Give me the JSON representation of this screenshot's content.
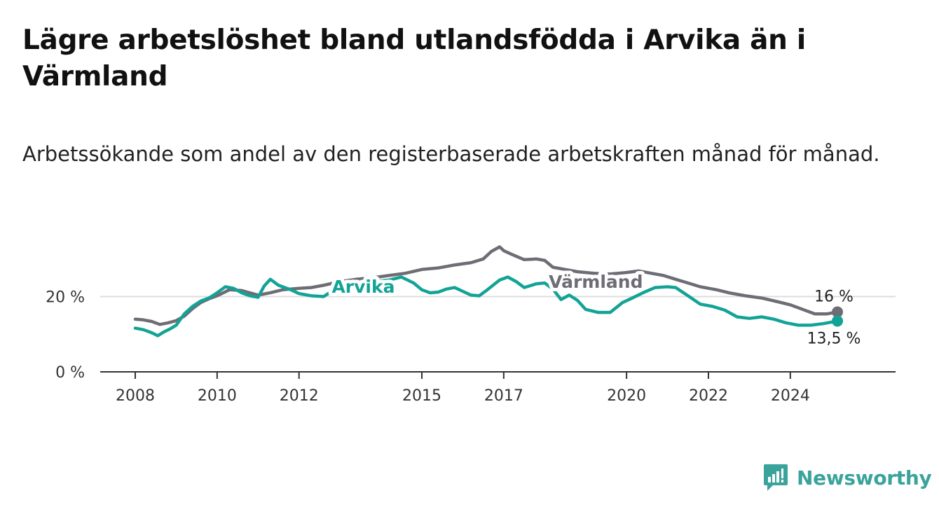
{
  "title": "Lägre arbetslöshet bland utlandsfödda i Arvika än i Värmland",
  "subtitle": "Arbetssökande som andel av den registerbaserade arbetskraften månad för månad.",
  "brand": {
    "name": "Newsworthy",
    "icon": "newsworthy-logo-icon"
  },
  "colors": {
    "arvika": "#13a396",
    "varmland": "#6e6c75",
    "grid": "#dddddd",
    "brand": "#3aa39b"
  },
  "chart_data": {
    "type": "line",
    "title": "Lägre arbetslöshet bland utlandsfödda i Arvika än i Värmland",
    "subtitle": "Arbetssökande som andel av den registerbaserade arbetskraften månad för månad.",
    "xlabel": "",
    "ylabel": "",
    "xlim": [
      2008,
      2025.8
    ],
    "ylim": [
      0,
      40
    ],
    "x_ticks": [
      {
        "value": 2008,
        "label": "2008"
      },
      {
        "value": 2010,
        "label": "2010"
      },
      {
        "value": 2012,
        "label": "2012"
      },
      {
        "value": 2015,
        "label": "2015"
      },
      {
        "value": 2017,
        "label": "2017"
      },
      {
        "value": 2020,
        "label": "2020"
      },
      {
        "value": 2022,
        "label": "2022"
      },
      {
        "value": 2024,
        "label": "2024"
      }
    ],
    "y_ticks": [
      {
        "value": 0,
        "label": "0 %"
      },
      {
        "value": 20,
        "label": "20 %"
      }
    ],
    "grid": true,
    "legend": "inline labels",
    "series": [
      {
        "name": "Värmland",
        "color": "#6e6c75",
        "label_at": [
          2013.8,
          23.8
        ],
        "end_label": "16 %",
        "points": [
          [
            2008.0,
            14.0
          ],
          [
            2008.2,
            13.8
          ],
          [
            2008.4,
            13.4
          ],
          [
            2008.6,
            12.6
          ],
          [
            2008.8,
            13.0
          ],
          [
            2009.0,
            13.6
          ],
          [
            2009.2,
            14.8
          ],
          [
            2009.4,
            16.8
          ],
          [
            2009.6,
            18.4
          ],
          [
            2009.8,
            19.4
          ],
          [
            2010.0,
            20.2
          ],
          [
            2010.3,
            21.8
          ],
          [
            2010.6,
            21.6
          ],
          [
            2011.0,
            20.4
          ],
          [
            2011.3,
            21.0
          ],
          [
            2011.6,
            21.8
          ],
          [
            2012.0,
            22.2
          ],
          [
            2012.3,
            22.4
          ],
          [
            2012.6,
            23.0
          ],
          [
            2013.0,
            24.0
          ],
          [
            2013.4,
            24.6
          ],
          [
            2013.8,
            25.0
          ],
          [
            2014.2,
            25.6
          ],
          [
            2014.6,
            26.2
          ],
          [
            2015.0,
            27.2
          ],
          [
            2015.4,
            27.6
          ],
          [
            2015.8,
            28.4
          ],
          [
            2016.2,
            29.0
          ],
          [
            2016.5,
            30.0
          ],
          [
            2016.7,
            32.0
          ],
          [
            2016.9,
            33.2
          ],
          [
            2017.0,
            32.2
          ],
          [
            2017.2,
            31.2
          ],
          [
            2017.5,
            29.8
          ],
          [
            2017.8,
            30.0
          ],
          [
            2018.0,
            29.6
          ],
          [
            2018.2,
            27.8
          ],
          [
            2018.5,
            27.2
          ],
          [
            2018.8,
            26.6
          ],
          [
            2019.2,
            26.2
          ],
          [
            2019.6,
            26.0
          ],
          [
            2020.0,
            26.4
          ],
          [
            2020.3,
            26.8
          ],
          [
            2020.6,
            26.2
          ],
          [
            2020.9,
            25.6
          ],
          [
            2021.2,
            24.6
          ],
          [
            2021.5,
            23.6
          ],
          [
            2021.8,
            22.6
          ],
          [
            2022.2,
            21.8
          ],
          [
            2022.5,
            21.0
          ],
          [
            2022.9,
            20.2
          ],
          [
            2023.3,
            19.6
          ],
          [
            2023.7,
            18.6
          ],
          [
            2024.0,
            17.8
          ],
          [
            2024.3,
            16.6
          ],
          [
            2024.6,
            15.4
          ],
          [
            2024.9,
            15.4
          ],
          [
            2025.15,
            15.9
          ]
        ]
      },
      {
        "name": "Arvika",
        "color": "#13a396",
        "label_at": [
          2012.8,
          22.8
        ],
        "end_label": "13,5 %",
        "points": [
          [
            2008.0,
            11.6
          ],
          [
            2008.2,
            11.2
          ],
          [
            2008.4,
            10.4
          ],
          [
            2008.55,
            9.6
          ],
          [
            2008.7,
            10.6
          ],
          [
            2008.85,
            11.4
          ],
          [
            2009.0,
            12.4
          ],
          [
            2009.2,
            15.4
          ],
          [
            2009.4,
            17.4
          ],
          [
            2009.6,
            18.8
          ],
          [
            2009.8,
            19.6
          ],
          [
            2010.0,
            21.0
          ],
          [
            2010.2,
            22.6
          ],
          [
            2010.4,
            22.2
          ],
          [
            2010.6,
            21.0
          ],
          [
            2010.8,
            20.2
          ],
          [
            2011.0,
            19.8
          ],
          [
            2011.15,
            22.8
          ],
          [
            2011.3,
            24.6
          ],
          [
            2011.5,
            23.0
          ],
          [
            2011.8,
            21.8
          ],
          [
            2012.0,
            20.8
          ],
          [
            2012.3,
            20.2
          ],
          [
            2012.6,
            20.0
          ],
          [
            2012.8,
            21.4
          ],
          [
            2013.0,
            23.0
          ],
          [
            2014.2,
            24.4
          ],
          [
            2014.5,
            25.2
          ],
          [
            2014.8,
            23.6
          ],
          [
            2015.0,
            21.8
          ],
          [
            2015.2,
            21.0
          ],
          [
            2015.4,
            21.2
          ],
          [
            2015.6,
            22.0
          ],
          [
            2015.8,
            22.4
          ],
          [
            2016.0,
            21.4
          ],
          [
            2016.2,
            20.4
          ],
          [
            2016.4,
            20.2
          ],
          [
            2016.6,
            21.8
          ],
          [
            2016.9,
            24.4
          ],
          [
            2017.1,
            25.2
          ],
          [
            2017.3,
            24.0
          ],
          [
            2017.5,
            22.4
          ],
          [
            2017.8,
            23.4
          ],
          [
            2018.0,
            23.6
          ],
          [
            2018.2,
            22.0
          ],
          [
            2018.4,
            19.2
          ],
          [
            2018.6,
            20.4
          ],
          [
            2018.8,
            19.0
          ],
          [
            2019.0,
            16.6
          ],
          [
            2019.3,
            15.8
          ],
          [
            2019.6,
            15.8
          ],
          [
            2019.9,
            18.4
          ],
          [
            2020.1,
            19.4
          ],
          [
            2020.4,
            21.0
          ],
          [
            2020.7,
            22.4
          ],
          [
            2021.0,
            22.6
          ],
          [
            2021.2,
            22.4
          ],
          [
            2021.5,
            20.2
          ],
          [
            2021.8,
            18.0
          ],
          [
            2022.1,
            17.4
          ],
          [
            2022.4,
            16.4
          ],
          [
            2022.7,
            14.6
          ],
          [
            2023.0,
            14.2
          ],
          [
            2023.3,
            14.6
          ],
          [
            2023.6,
            14.0
          ],
          [
            2023.9,
            13.0
          ],
          [
            2024.2,
            12.4
          ],
          [
            2024.5,
            12.4
          ],
          [
            2024.8,
            12.8
          ],
          [
            2025.15,
            13.5
          ]
        ]
      }
    ]
  }
}
